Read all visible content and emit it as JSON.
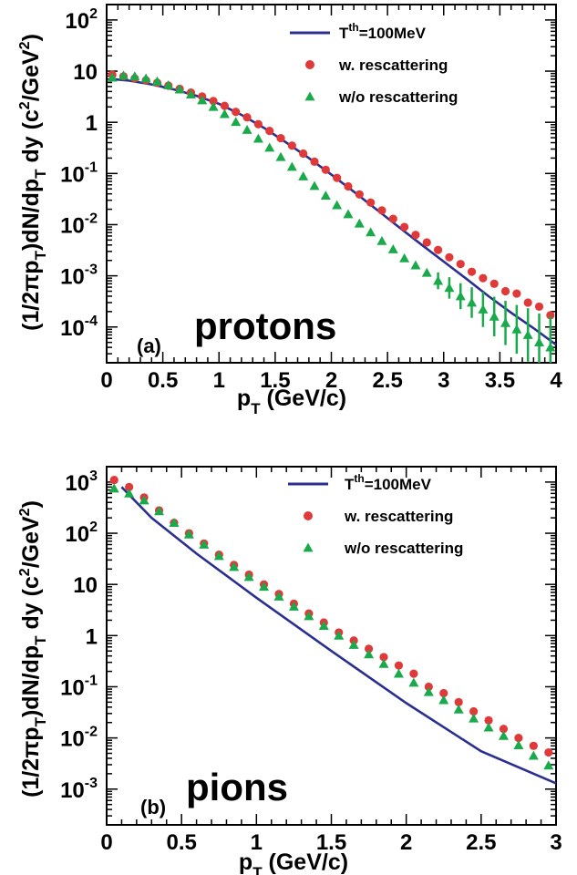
{
  "colors": {
    "theory": "#2b2f8f",
    "with": "#e0393a",
    "without": "#1aa94b",
    "axis": "#000000"
  },
  "chart_data": [
    {
      "type": "scatter",
      "panel": "(a)",
      "label_big": "protons",
      "xlabel": "p_T (GeV/c)",
      "ylabel": "(1/2πp_T)dN/dp_T dy (c^2/GeV^2)",
      "xlim": [
        0,
        4
      ],
      "ylim": [
        2e-05,
        200
      ],
      "yscale": "log",
      "x_ticks": [
        0,
        0.5,
        1,
        1.5,
        2,
        2.5,
        3,
        3.5,
        4
      ],
      "x_tick_labels": [
        "0",
        "0.5",
        "1",
        "1.5",
        "2",
        "2.5",
        "3",
        "3.5",
        "4"
      ],
      "y_ticks": [
        {
          "v": 100,
          "base": "10",
          "exp": "2"
        },
        {
          "v": 10,
          "base": "10",
          "exp": ""
        },
        {
          "v": 1,
          "base": "1",
          "exp": ""
        },
        {
          "v": 0.1,
          "base": "10",
          "exp": "-1"
        },
        {
          "v": 0.01,
          "base": "10",
          "exp": "-2"
        },
        {
          "v": 0.001,
          "base": "10",
          "exp": "-3"
        },
        {
          "v": 0.0001,
          "base": "10",
          "exp": "-4"
        }
      ],
      "legend": [
        {
          "key": "theory",
          "base": "T",
          "sup": "th",
          "rest": "=100MeV"
        },
        {
          "key": "with",
          "base": "w. rescattering",
          "sup": "",
          "rest": ""
        },
        {
          "key": "without",
          "base": "w/o rescattering",
          "sup": "",
          "rest": ""
        }
      ],
      "series": [
        {
          "name": "T^th=100MeV",
          "kind": "line",
          "x": [
            0.05,
            0.2,
            0.4,
            0.6,
            0.8,
            1.0,
            1.2,
            1.4,
            1.6,
            1.8,
            2.0,
            2.2,
            2.4,
            2.6,
            2.8,
            3.0,
            3.2,
            3.4,
            3.6,
            3.8,
            4.0
          ],
          "y": [
            7.0,
            6.5,
            5.5,
            4.4,
            3.3,
            2.3,
            1.4,
            0.78,
            0.4,
            0.2,
            0.095,
            0.044,
            0.02,
            0.009,
            0.0041,
            0.0019,
            0.00088,
            0.0004,
            0.00019,
            9.5e-05,
            4.5e-05
          ]
        },
        {
          "name": "w. rescattering",
          "kind": "circle",
          "x": [
            0.05,
            0.15,
            0.25,
            0.35,
            0.45,
            0.55,
            0.65,
            0.75,
            0.85,
            0.95,
            1.05,
            1.15,
            1.25,
            1.35,
            1.45,
            1.55,
            1.65,
            1.75,
            1.85,
            1.95,
            2.05,
            2.15,
            2.25,
            2.35,
            2.45,
            2.55,
            2.65,
            2.75,
            2.85,
            2.95,
            3.05,
            3.15,
            3.25,
            3.35,
            3.45,
            3.55,
            3.65,
            3.75,
            3.85,
            3.95
          ],
          "y": [
            8.5,
            7.9,
            7.2,
            6.6,
            5.9,
            5.2,
            4.5,
            3.8,
            3.2,
            2.6,
            2.1,
            1.6,
            1.25,
            0.92,
            0.68,
            0.49,
            0.35,
            0.245,
            0.17,
            0.118,
            0.082,
            0.056,
            0.039,
            0.027,
            0.019,
            0.013,
            0.009,
            0.0063,
            0.0045,
            0.0032,
            0.0023,
            0.0017,
            0.0012,
            0.0009,
            0.0007,
            0.0005,
            0.00045,
            0.0003,
            0.00025,
            0.00017
          ]
        },
        {
          "name": "w/o rescattering",
          "kind": "triangle",
          "x": [
            0.05,
            0.15,
            0.25,
            0.35,
            0.45,
            0.55,
            0.65,
            0.75,
            0.85,
            0.95,
            1.05,
            1.15,
            1.25,
            1.35,
            1.45,
            1.55,
            1.65,
            1.75,
            1.85,
            1.95,
            2.05,
            2.15,
            2.25,
            2.35,
            2.45,
            2.55,
            2.65,
            2.75,
            2.85,
            2.95,
            3.05,
            3.15,
            3.25,
            3.35,
            3.45,
            3.55,
            3.65,
            3.75,
            3.85,
            3.95
          ],
          "y": [
            7.5,
            8.2,
            7.9,
            7.2,
            6.3,
            5.3,
            4.4,
            3.5,
            2.7,
            2.0,
            1.45,
            1.02,
            0.71,
            0.48,
            0.32,
            0.21,
            0.135,
            0.088,
            0.057,
            0.037,
            0.024,
            0.016,
            0.0105,
            0.0071,
            0.0048,
            0.0033,
            0.0022,
            0.0016,
            0.00115,
            0.0008,
            0.00058,
            0.0004,
            0.0003,
            0.00022,
            0.00016,
            0.00012,
            9e-05,
            7e-05,
            5e-05,
            4e-05
          ]
        }
      ]
    },
    {
      "type": "scatter",
      "panel": "(b)",
      "label_big": "pions",
      "xlabel": "p_T (GeV/c)",
      "ylabel": "(1/2πp_T)dN/dp_T dy (c^2/GeV^2)",
      "xlim": [
        0,
        3
      ],
      "ylim": [
        0.0002,
        2000
      ],
      "yscale": "log",
      "x_ticks": [
        0,
        0.5,
        1,
        1.5,
        2,
        2.5,
        3
      ],
      "x_tick_labels": [
        "0",
        "0.5",
        "1",
        "1.5",
        "2",
        "2.5",
        "3"
      ],
      "y_ticks": [
        {
          "v": 1000,
          "base": "10",
          "exp": "3"
        },
        {
          "v": 100,
          "base": "10",
          "exp": "2"
        },
        {
          "v": 10,
          "base": "10",
          "exp": ""
        },
        {
          "v": 1,
          "base": "1",
          "exp": ""
        },
        {
          "v": 0.1,
          "base": "10",
          "exp": "-1"
        },
        {
          "v": 0.01,
          "base": "10",
          "exp": "-2"
        },
        {
          "v": 0.001,
          "base": "10",
          "exp": "-3"
        }
      ],
      "legend": [
        {
          "key": "theory",
          "base": "T",
          "sup": "th",
          "rest": "=100MeV"
        },
        {
          "key": "with",
          "base": "w. rescattering",
          "sup": "",
          "rest": ""
        },
        {
          "key": "without",
          "base": "w/o rescattering",
          "sup": "",
          "rest": ""
        }
      ],
      "series": [
        {
          "name": "T^th=100MeV",
          "kind": "line",
          "x": [
            0.1,
            0.3,
            0.6,
            1.0,
            1.5,
            2.0,
            2.5,
            3.0
          ],
          "y": [
            800,
            200,
            40,
            5.5,
            0.5,
            0.048,
            0.0055,
            0.0013
          ]
        },
        {
          "name": "w. rescattering",
          "kind": "circle",
          "x": [
            0.05,
            0.15,
            0.25,
            0.35,
            0.45,
            0.55,
            0.65,
            0.75,
            0.85,
            0.95,
            1.05,
            1.15,
            1.25,
            1.35,
            1.45,
            1.55,
            1.65,
            1.75,
            1.85,
            1.95,
            2.05,
            2.15,
            2.25,
            2.35,
            2.45,
            2.55,
            2.65,
            2.75,
            2.85,
            2.95
          ],
          "y": [
            1100,
            800,
            500,
            280,
            160,
            100,
            63,
            38,
            24,
            15.5,
            10,
            6.5,
            4.2,
            2.7,
            1.8,
            1.15,
            0.8,
            0.55,
            0.38,
            0.26,
            0.18,
            0.1,
            0.075,
            0.05,
            0.033,
            0.022,
            0.015,
            0.01,
            0.007,
            0.0052
          ]
        },
        {
          "name": "w/o rescattering",
          "kind": "triangle",
          "x": [
            0.05,
            0.15,
            0.25,
            0.35,
            0.45,
            0.55,
            0.65,
            0.75,
            0.85,
            0.95,
            1.05,
            1.15,
            1.25,
            1.35,
            1.45,
            1.55,
            1.65,
            1.75,
            1.85,
            1.95,
            2.05,
            2.15,
            2.25,
            2.35,
            2.45,
            2.55,
            2.65,
            2.75,
            2.85,
            2.95
          ],
          "y": [
            750,
            600,
            440,
            270,
            160,
            95,
            60,
            36,
            22,
            14,
            9,
            5.8,
            3.7,
            2.4,
            1.55,
            1.0,
            0.66,
            0.43,
            0.28,
            0.18,
            0.12,
            0.079,
            0.055,
            0.036,
            0.024,
            0.016,
            0.011,
            0.0072,
            0.0045,
            0.0029
          ]
        }
      ]
    }
  ]
}
